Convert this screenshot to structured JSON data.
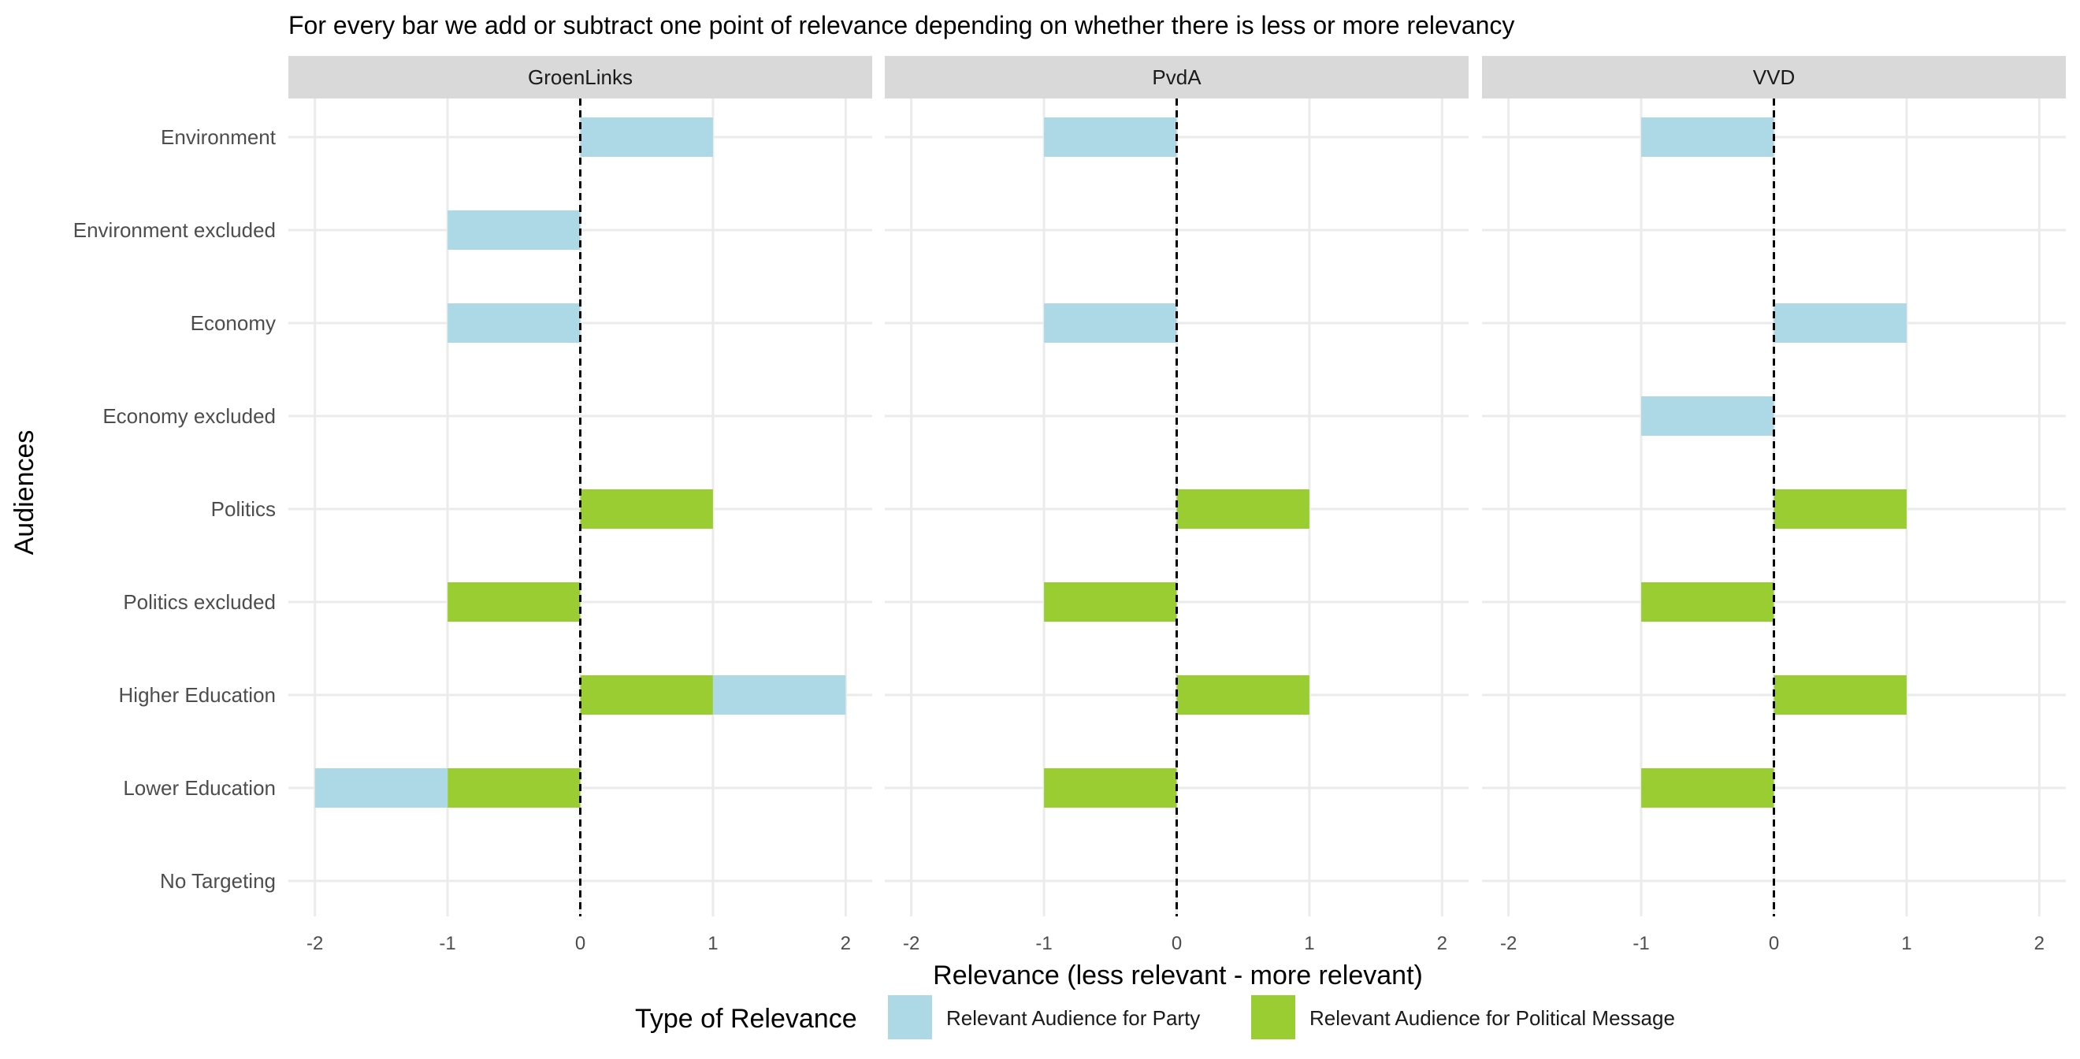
{
  "chart_data": {
    "type": "bar",
    "orientation": "horizontal",
    "stacked": true,
    "title": "For every bar we add or subtract one point of relevance depending on whether there is less or more relevancy",
    "xlabel": "Relevance (less relevant - more relevant)",
    "ylabel": "Audiences",
    "xlim": [
      -2.2,
      2.2
    ],
    "xticks": [
      -2,
      -1,
      0,
      1,
      2
    ],
    "xtick_labels": [
      "-2",
      "-1",
      "0",
      "1",
      "2"
    ],
    "categories": [
      "Environment",
      "Environment excluded",
      "Economy",
      "Economy excluded",
      "Politics",
      "Politics excluded",
      "Higher Education",
      "Lower Education",
      "No Targeting"
    ],
    "reference_line": {
      "x": 0,
      "style": "dashed"
    },
    "legend": {
      "title": "Type of Relevance",
      "position": "bottom",
      "entries": [
        {
          "name": "Relevant Audience for Party",
          "color": "#add8e6"
        },
        {
          "name": "Relevant Audience for Political Message",
          "color": "#9acd32"
        }
      ]
    },
    "panels": [
      {
        "name": "GroenLinks",
        "segments": [
          {
            "category": "Environment",
            "series": "Relevant Audience for Party",
            "from": 0,
            "to": 1
          },
          {
            "category": "Environment excluded",
            "series": "Relevant Audience for Party",
            "from": -1,
            "to": 0
          },
          {
            "category": "Economy",
            "series": "Relevant Audience for Party",
            "from": -1,
            "to": 0
          },
          {
            "category": "Politics",
            "series": "Relevant Audience for Political Message",
            "from": 0,
            "to": 1
          },
          {
            "category": "Politics excluded",
            "series": "Relevant Audience for Political Message",
            "from": -1,
            "to": 0
          },
          {
            "category": "Higher Education",
            "series": "Relevant Audience for Political Message",
            "from": 0,
            "to": 1
          },
          {
            "category": "Higher Education",
            "series": "Relevant Audience for Party",
            "from": 1,
            "to": 2
          },
          {
            "category": "Lower Education",
            "series": "Relevant Audience for Political Message",
            "from": -1,
            "to": 0
          },
          {
            "category": "Lower Education",
            "series": "Relevant Audience for Party",
            "from": -2,
            "to": -1
          }
        ]
      },
      {
        "name": "PvdA",
        "segments": [
          {
            "category": "Environment",
            "series": "Relevant Audience for Party",
            "from": -1,
            "to": 0
          },
          {
            "category": "Economy",
            "series": "Relevant Audience for Party",
            "from": -1,
            "to": 0
          },
          {
            "category": "Politics",
            "series": "Relevant Audience for Political Message",
            "from": 0,
            "to": 1
          },
          {
            "category": "Politics excluded",
            "series": "Relevant Audience for Political Message",
            "from": -1,
            "to": 0
          },
          {
            "category": "Higher Education",
            "series": "Relevant Audience for Political Message",
            "from": 0,
            "to": 1
          },
          {
            "category": "Lower Education",
            "series": "Relevant Audience for Political Message",
            "from": -1,
            "to": 0
          }
        ]
      },
      {
        "name": "VVD",
        "segments": [
          {
            "category": "Environment",
            "series": "Relevant Audience for Party",
            "from": -1,
            "to": 0
          },
          {
            "category": "Economy",
            "series": "Relevant Audience for Party",
            "from": 0,
            "to": 1
          },
          {
            "category": "Economy excluded",
            "series": "Relevant Audience for Party",
            "from": -1,
            "to": 0
          },
          {
            "category": "Politics",
            "series": "Relevant Audience for Political Message",
            "from": 0,
            "to": 1
          },
          {
            "category": "Politics excluded",
            "series": "Relevant Audience for Political Message",
            "from": -1,
            "to": 0
          },
          {
            "category": "Higher Education",
            "series": "Relevant Audience for Political Message",
            "from": 0,
            "to": 1
          },
          {
            "category": "Lower Education",
            "series": "Relevant Audience for Political Message",
            "from": -1,
            "to": 0
          }
        ]
      }
    ],
    "grid": true
  }
}
